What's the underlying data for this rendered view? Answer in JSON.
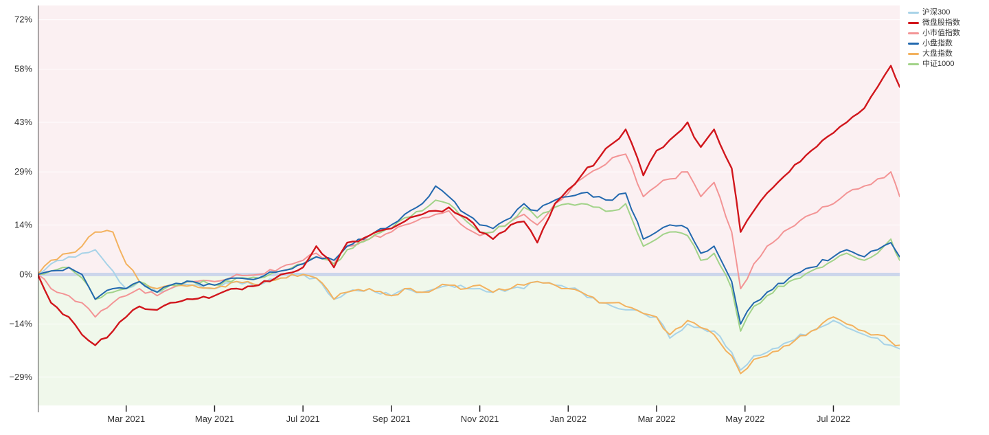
{
  "chart_data": {
    "type": "line",
    "title": "",
    "xlabel": "",
    "ylabel": "",
    "x_unit": "months_since_2021_01",
    "xlim": [
      0,
      19.5
    ],
    "ylim": [
      -37,
      76
    ],
    "grid": true,
    "legend_position": "top-right",
    "zero_band_color": "#ccd6eb",
    "bg_above_zero": "#fbf0f2",
    "bg_below_zero": "#f0f8eb",
    "grid_color": "rgba(255,255,255,0.85)",
    "axis_text_color": "#333333",
    "y_ticks": [
      {
        "label": "72%",
        "value": 72
      },
      {
        "label": "58%",
        "value": 58
      },
      {
        "label": "43%",
        "value": 43
      },
      {
        "label": "29%",
        "value": 29
      },
      {
        "label": "14%",
        "value": 14
      },
      {
        "label": "0%",
        "value": 0
      },
      {
        "label": "−14%",
        "value": -14
      },
      {
        "label": "−29%",
        "value": -29
      }
    ],
    "x_ticks": [
      {
        "label": "Mar 2021",
        "month": 2
      },
      {
        "label": "May 2021",
        "month": 4
      },
      {
        "label": "Jul 2021",
        "month": 6
      },
      {
        "label": "Sep 2021",
        "month": 8
      },
      {
        "label": "Nov 2021",
        "month": 10
      },
      {
        "label": "Jan 2022",
        "month": 12
      },
      {
        "label": "Mar 2022",
        "month": 14
      },
      {
        "label": "May 2022",
        "month": 16
      },
      {
        "label": "Jul 2022",
        "month": 18
      }
    ],
    "x": [
      0,
      0.3,
      0.7,
      1.0,
      1.3,
      1.7,
      2.0,
      2.3,
      2.7,
      3.0,
      3.5,
      4.0,
      4.5,
      5.0,
      5.5,
      6.0,
      6.3,
      6.7,
      7.0,
      7.5,
      8.0,
      8.3,
      8.7,
      9.0,
      9.3,
      9.7,
      10.0,
      10.3,
      10.7,
      11.0,
      11.3,
      11.7,
      12.0,
      12.3,
      12.7,
      13.0,
      13.3,
      13.7,
      14.0,
      14.3,
      14.7,
      15.0,
      15.3,
      15.7,
      15.9,
      16.2,
      16.5,
      17.0,
      17.5,
      18.0,
      18.3,
      18.7,
      19.0,
      19.3,
      19.5
    ],
    "series": [
      {
        "name": "沪深300",
        "color": "#a8d3e8",
        "values": [
          0,
          3,
          5,
          6,
          7,
          1,
          -4,
          -2,
          -5,
          -4,
          -3,
          -4,
          -2,
          -3,
          -1,
          0,
          -1,
          -7,
          -5,
          -4,
          -6,
          -4,
          -5,
          -4,
          -3,
          -4,
          -4,
          -5,
          -4,
          -4,
          -2,
          -3,
          -4,
          -5,
          -8,
          -9,
          -10,
          -11,
          -12,
          -18,
          -14,
          -15,
          -16,
          -22,
          -27,
          -23,
          -22,
          -19,
          -16,
          -13,
          -15,
          -17,
          -18,
          -20,
          -21
        ]
      },
      {
        "name": "微盘股指数",
        "color": "#d1161c",
        "values": [
          0,
          -8,
          -12,
          -17,
          -20,
          -16,
          -12,
          -9,
          -10,
          -8,
          -7,
          -6,
          -4,
          -3,
          0,
          2,
          8,
          2,
          9,
          11,
          13,
          15,
          17,
          18,
          19,
          16,
          12,
          10,
          14,
          15,
          9,
          20,
          24,
          28,
          33,
          37,
          41,
          28,
          35,
          38,
          43,
          36,
          41,
          30,
          12,
          18,
          23,
          29,
          35,
          40,
          43,
          47,
          53,
          59,
          53
        ]
      },
      {
        "name": "小市值指数",
        "color": "#f39495",
        "values": [
          0,
          -4,
          -6,
          -8,
          -12,
          -8,
          -6,
          -4,
          -6,
          -4,
          -2,
          -2,
          0,
          0,
          2,
          4,
          6,
          3,
          8,
          10,
          12,
          14,
          16,
          17,
          18,
          13,
          11,
          12,
          15,
          17,
          14,
          20,
          23,
          27,
          30,
          33,
          34,
          22,
          25,
          27,
          29,
          22,
          26,
          12,
          -4,
          3,
          8,
          13,
          17,
          20,
          23,
          25,
          27,
          29,
          22
        ]
      },
      {
        "name": "小盘指数",
        "color": "#2268ae",
        "values": [
          0,
          1,
          2,
          0,
          -7,
          -4,
          -4,
          -2,
          -5,
          -3,
          -2,
          -3,
          -1,
          -1,
          1,
          3,
          5,
          4,
          8,
          11,
          14,
          17,
          20,
          25,
          22,
          17,
          14,
          13,
          16,
          20,
          18,
          21,
          22,
          23,
          22,
          21,
          23,
          10,
          12,
          14,
          13,
          6,
          8,
          -2,
          -14,
          -8,
          -5,
          -1,
          2,
          5,
          7,
          5,
          7,
          9,
          5
        ]
      },
      {
        "name": "大盘指数",
        "color": "#f3b25f",
        "values": [
          0,
          4,
          6,
          8,
          12,
          12,
          3,
          -2,
          -4,
          -3,
          -3,
          -4,
          -2,
          -3,
          -1,
          0,
          -1,
          -7,
          -5,
          -4,
          -6,
          -4,
          -5,
          -4,
          -3,
          -4,
          -3,
          -5,
          -4,
          -3,
          -2,
          -3,
          -4,
          -5,
          -8,
          -8,
          -9,
          -11,
          -12,
          -17,
          -13,
          -15,
          -17,
          -23,
          -28,
          -24,
          -23,
          -20,
          -16,
          -12,
          -14,
          -16,
          -17,
          -19,
          -20
        ]
      },
      {
        "name": "中证1000",
        "color": "#a2d389",
        "values": [
          0,
          1,
          2,
          -1,
          -7,
          -5,
          -4,
          -2,
          -5,
          -3,
          -2,
          -3,
          -1,
          -1,
          1,
          3,
          5,
          3,
          7,
          10,
          13,
          16,
          18,
          21,
          20,
          15,
          12,
          12,
          15,
          19,
          16,
          19,
          20,
          20,
          19,
          18,
          20,
          8,
          10,
          12,
          11,
          4,
          6,
          -4,
          -16,
          -9,
          -6,
          -2,
          1,
          4,
          6,
          4,
          6,
          10,
          4
        ]
      }
    ]
  }
}
